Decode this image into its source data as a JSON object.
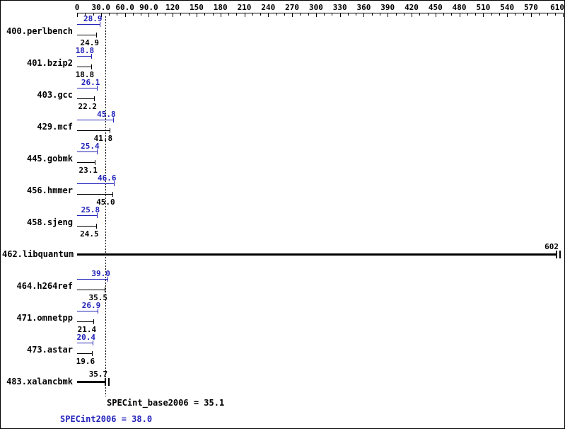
{
  "colors": {
    "peak": "#2222bb",
    "base": "#000000",
    "background": "#ffffff"
  },
  "chart_data": {
    "type": "bar",
    "orientation": "horizontal",
    "title": "",
    "x_axis": {
      "min": 0,
      "max": 610,
      "minor_tick_interval": 10,
      "ticks": [
        {
          "v": 0,
          "label": "0"
        },
        {
          "v": 30,
          "label": "30.0"
        },
        {
          "v": 60,
          "label": "60.0"
        },
        {
          "v": 90,
          "label": "90.0"
        },
        {
          "v": 120,
          "label": "120"
        },
        {
          "v": 150,
          "label": "150"
        },
        {
          "v": 180,
          "label": "180"
        },
        {
          "v": 210,
          "label": "210"
        },
        {
          "v": 240,
          "label": "240"
        },
        {
          "v": 270,
          "label": "270"
        },
        {
          "v": 300,
          "label": "300"
        },
        {
          "v": 330,
          "label": "330"
        },
        {
          "v": 360,
          "label": "360"
        },
        {
          "v": 390,
          "label": "390"
        },
        {
          "v": 420,
          "label": "420"
        },
        {
          "v": 450,
          "label": "450"
        },
        {
          "v": 480,
          "label": "480"
        },
        {
          "v": 510,
          "label": "510"
        },
        {
          "v": 540,
          "label": "540"
        },
        {
          "v": 570,
          "label": "570"
        },
        {
          "v": 610,
          "label": "610"
        }
      ]
    },
    "series": [
      {
        "key": "peak",
        "name": "SPECint2006",
        "aggregate": 38.0,
        "color": "#2222bb"
      },
      {
        "key": "base",
        "name": "SPECint_base2006",
        "aggregate": 35.1,
        "color": "#000000"
      }
    ],
    "benchmarks": [
      {
        "name": "400.perlbench",
        "peak": {
          "value": 28.9,
          "label": "28.9"
        },
        "base": {
          "value": 24.9,
          "label": "24.9"
        }
      },
      {
        "name": "401.bzip2",
        "peak": {
          "value": 18.8,
          "label": "18.8"
        },
        "base": {
          "value": 18.8,
          "label": "18.8"
        }
      },
      {
        "name": "403.gcc",
        "peak": {
          "value": 26.1,
          "label": "26.1"
        },
        "base": {
          "value": 22.2,
          "label": "22.2"
        }
      },
      {
        "name": "429.mcf",
        "peak": {
          "value": 45.8,
          "label": "45.8"
        },
        "base": {
          "value": 41.8,
          "label": "41.8"
        }
      },
      {
        "name": "445.gobmk",
        "peak": {
          "value": 25.4,
          "label": "25.4"
        },
        "base": {
          "value": 23.1,
          "label": "23.1"
        }
      },
      {
        "name": "456.hmmer",
        "peak": {
          "value": 46.6,
          "label": "46.6"
        },
        "base": {
          "value": 45.0,
          "label": "45.0"
        }
      },
      {
        "name": "458.sjeng",
        "peak": {
          "value": 25.8,
          "label": "25.8"
        },
        "base": {
          "value": 24.5,
          "label": "24.5"
        }
      },
      {
        "name": "462.libquantum",
        "single": {
          "value": 602,
          "label": "602"
        },
        "thick": true
      },
      {
        "name": "464.h264ref",
        "peak": {
          "value": 39.0,
          "label": "39.0"
        },
        "base": {
          "value": 35.5,
          "label": "35.5"
        }
      },
      {
        "name": "471.omnetpp",
        "peak": {
          "value": 26.9,
          "label": "26.9"
        },
        "base": {
          "value": 21.4,
          "label": "21.4"
        }
      },
      {
        "name": "473.astar",
        "peak": {
          "value": 20.4,
          "label": "20.4"
        },
        "base": {
          "value": 19.6,
          "label": "19.6"
        }
      },
      {
        "name": "483.xalancbmk",
        "single": {
          "value": 35.7,
          "label": "35.7"
        },
        "thick": true
      }
    ],
    "reference_line": {
      "value": 35.1,
      "style": "dotted"
    },
    "footer": {
      "base_label": "SPECint_base2006 = 35.1",
      "peak_label": "SPECint2006 = 38.0"
    }
  }
}
